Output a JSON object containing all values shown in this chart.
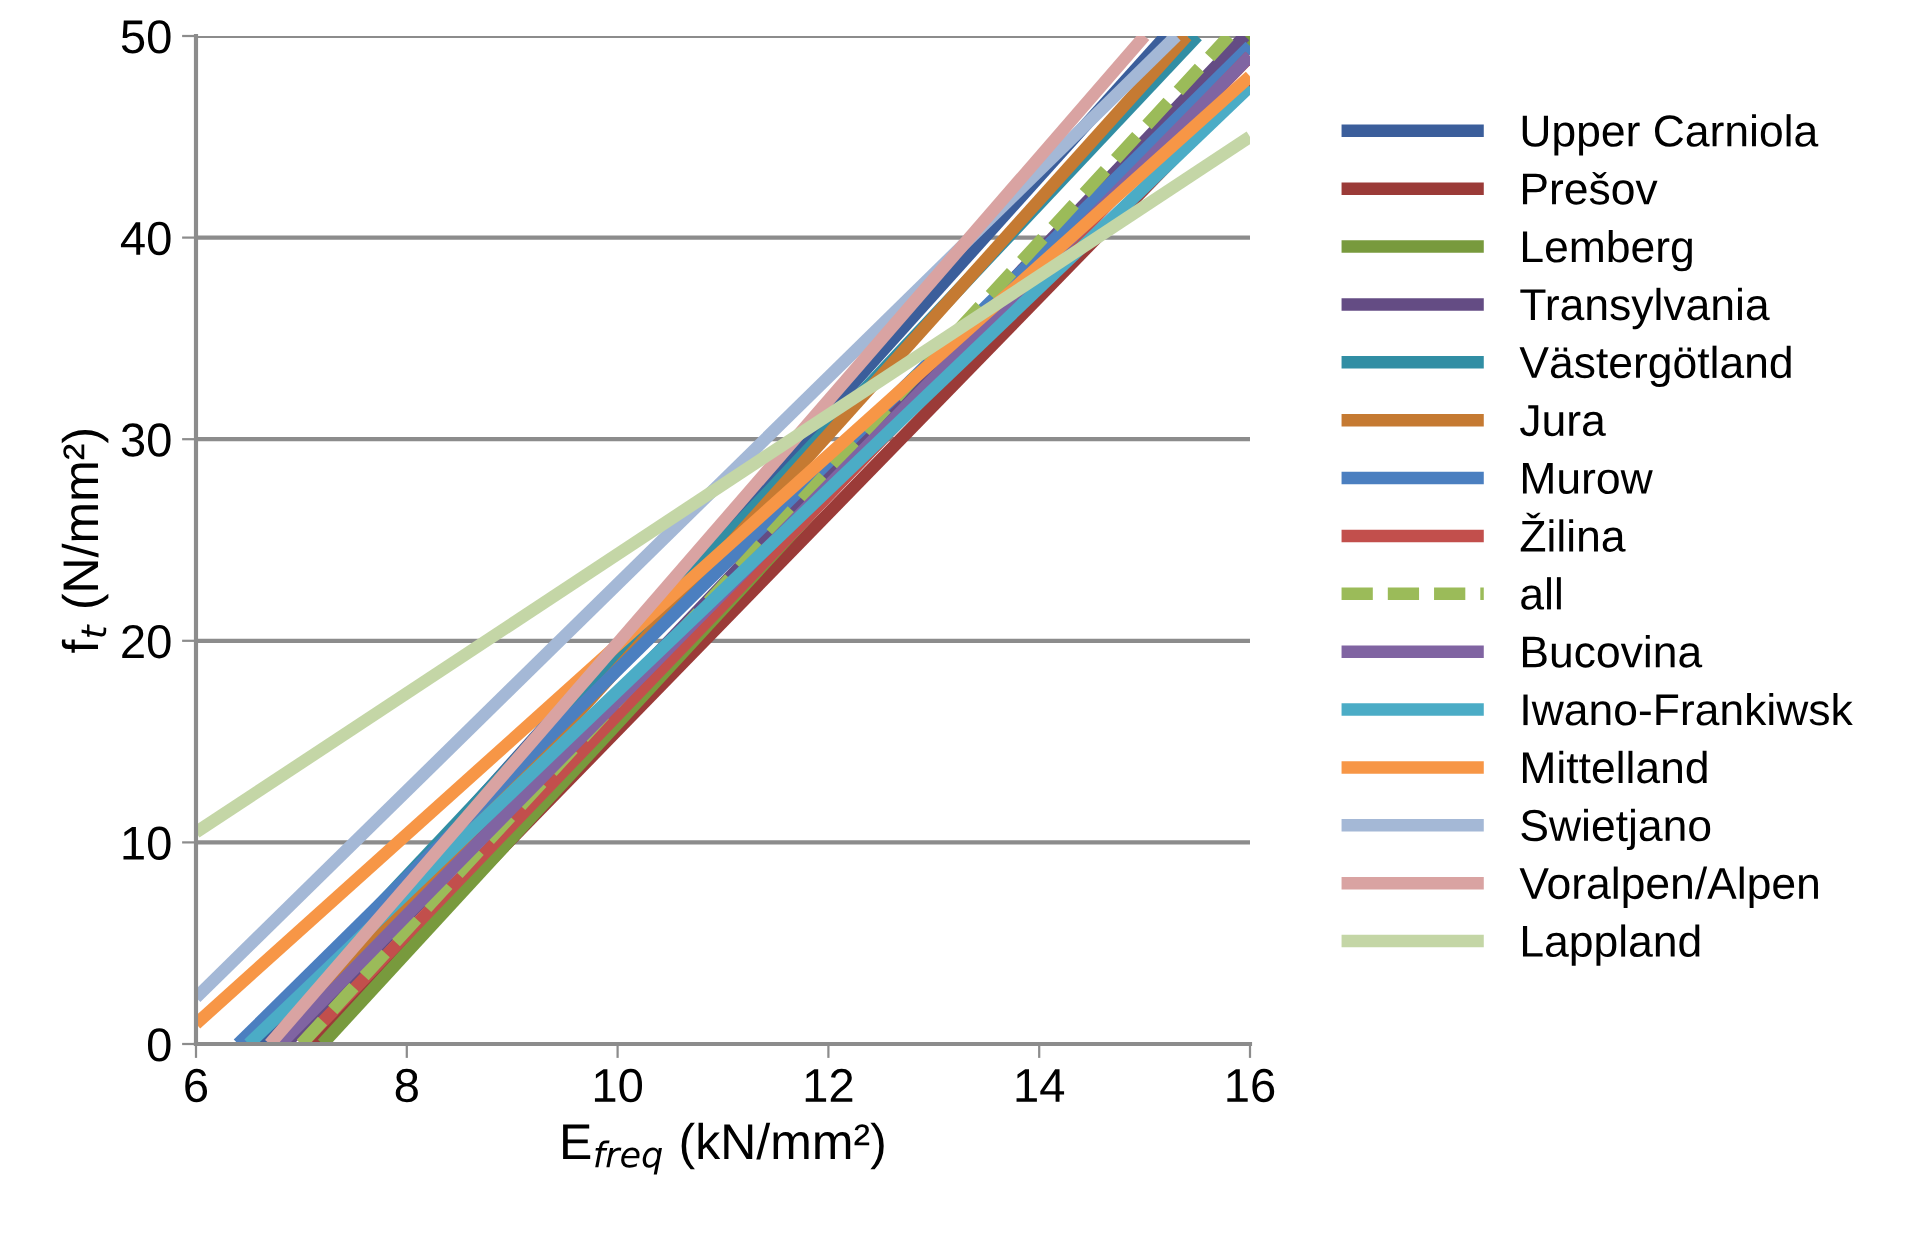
{
  "chart_data": {
    "type": "line",
    "xlabel": "E$_{freq}$ (kN/mm²)",
    "ylabel": "f$_{t}$ (N/mm²)",
    "xlim": [
      6,
      16
    ],
    "ylim": [
      0,
      50
    ],
    "xticks": [
      6,
      8,
      10,
      12,
      14,
      16
    ],
    "yticks": [
      0,
      10,
      20,
      30,
      40,
      50
    ],
    "grid": "y",
    "legend": "right",
    "marker": "none",
    "series": [
      {
        "name": "Upper Carniola",
        "color": "#3b5e9b",
        "x": [
          6.6,
          15.2
        ],
        "values": [
          0,
          50
        ]
      },
      {
        "name": "Prešov",
        "color": "#9b3b38",
        "x": [
          7.1,
          16
        ],
        "values": [
          0,
          47.8
        ]
      },
      {
        "name": "Lemberg",
        "color": "#789a3d",
        "x": [
          7.2,
          16
        ],
        "values": [
          0,
          50
        ]
      },
      {
        "name": "Transylvania",
        "color": "#644c84",
        "x": [
          6.85,
          15.95
        ],
        "values": [
          0,
          50
        ]
      },
      {
        "name": "Västergötland",
        "color": "#318ea4",
        "x": [
          6.5,
          15.5
        ],
        "values": [
          0,
          50
        ]
      },
      {
        "name": "Jura",
        "color": "#c57a32",
        "x": [
          6.8,
          15.4
        ],
        "values": [
          0,
          50
        ]
      },
      {
        "name": "Murow",
        "color": "#4b7fc0",
        "x": [
          6.4,
          16
        ],
        "values": [
          0,
          49.5
        ]
      },
      {
        "name": "Žilina",
        "color": "#c24f4c",
        "x": [
          7.0,
          16
        ],
        "values": [
          0,
          49
        ]
      },
      {
        "name": "all",
        "color": "#9bbb59",
        "line_style": "dashed",
        "x": [
          7.0,
          15.8
        ],
        "values": [
          0,
          50
        ]
      },
      {
        "name": "Bucovina",
        "color": "#8064a2",
        "x": [
          6.8,
          16
        ],
        "values": [
          0,
          49.0
        ]
      },
      {
        "name": "Iwano-Frankiwsk",
        "color": "#4bacc6",
        "x": [
          6.5,
          16
        ],
        "values": [
          0,
          47.5
        ]
      },
      {
        "name": "Mittelland",
        "color": "#f79646",
        "x": [
          6,
          16
        ],
        "values": [
          1,
          48
        ]
      },
      {
        "name": "Swietjano",
        "color": "#a4b8d6",
        "x": [
          6,
          15.3
        ],
        "values": [
          2.3,
          50
        ]
      },
      {
        "name": "Voralpen/Alpen",
        "color": "#d9a3a2",
        "x": [
          6.7,
          15.0
        ],
        "values": [
          0,
          50
        ]
      },
      {
        "name": "Lappland",
        "color": "#c4d6a6",
        "x": [
          6,
          16
        ],
        "values": [
          10.5,
          45
        ]
      }
    ]
  }
}
